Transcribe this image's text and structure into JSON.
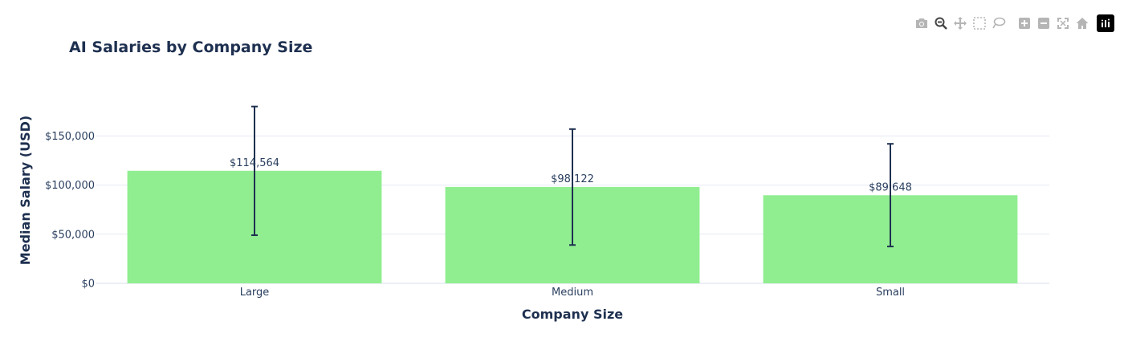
{
  "modebar": {
    "buttons": [
      "camera-icon",
      "zoom-icon",
      "pan-icon",
      "box-select-icon",
      "lasso-icon",
      "zoom-in-icon",
      "zoom-out-icon",
      "autoscale-icon",
      "reset-axes-icon"
    ],
    "logo": "plotly-logo-icon",
    "icon_color": "#b5b5b5",
    "active_color": "#444444"
  },
  "chart_data": {
    "type": "bar",
    "title": "AI Salaries by Company Size",
    "xlabel": "Company Size",
    "ylabel": "Median Salary (USD)",
    "categories": [
      "Large",
      "Medium",
      "Small"
    ],
    "values": [
      114564,
      98122,
      89648
    ],
    "data_labels": [
      "$114,564",
      "$98,122",
      "$89,648"
    ],
    "error_bars": [
      {
        "low": 49000,
        "high": 180000
      },
      {
        "low": 39000,
        "high": 157000
      },
      {
        "low": 37500,
        "high": 142000
      }
    ],
    "ylim": [
      0,
      192000
    ],
    "yticks": [
      0,
      50000,
      100000,
      150000
    ],
    "ytick_labels": [
      "$0",
      "$50,000",
      "$100,000",
      "$150,000"
    ],
    "bar_color": "#90ee90",
    "error_color": "#1e3050",
    "grid_color": "#e6eaf2",
    "grid": true,
    "legend": false
  }
}
